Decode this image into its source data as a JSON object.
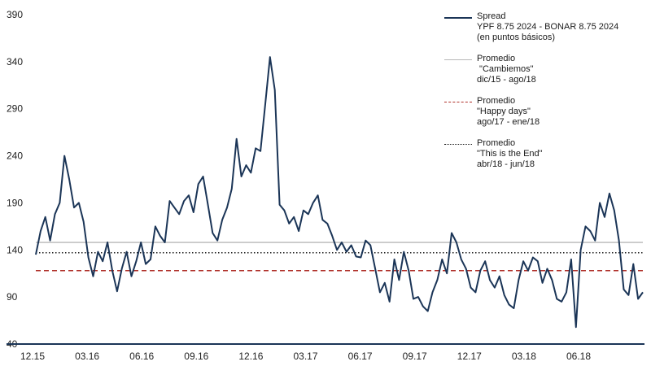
{
  "chart_data": {
    "type": "line",
    "x_ticks": [
      "12.15",
      "03.16",
      "06.16",
      "09.16",
      "12.16",
      "03.17",
      "06.17",
      "09.17",
      "12.17",
      "03.18",
      "06.18"
    ],
    "y_ticks": [
      40,
      90,
      140,
      190,
      240,
      290,
      340,
      390
    ],
    "ylim": [
      40,
      390
    ],
    "grid": false,
    "legend_position": "top-right",
    "colors": {
      "series": "#1b3557",
      "cambiemos": "#b7b7b7",
      "happy": "#b0302a",
      "end": "#1a1a1a"
    },
    "series": [
      {
        "name": "Spread",
        "x_start": "12.15",
        "values": [
          135,
          160,
          175,
          150,
          178,
          190,
          240,
          215,
          185,
          190,
          170,
          132,
          112,
          138,
          128,
          148,
          118,
          96,
          120,
          138,
          112,
          128,
          148,
          125,
          130,
          165,
          155,
          148,
          192,
          185,
          178,
          192,
          198,
          180,
          210,
          218,
          188,
          158,
          150,
          172,
          185,
          205,
          258,
          218,
          230,
          222,
          248,
          245,
          295,
          345,
          310,
          188,
          182,
          168,
          175,
          160,
          182,
          178,
          190,
          198,
          172,
          168,
          155,
          140,
          148,
          138,
          145,
          133,
          132,
          150,
          145,
          120,
          95,
          105,
          85,
          130,
          108,
          138,
          118,
          88,
          90,
          80,
          75,
          95,
          108,
          130,
          115,
          158,
          148,
          130,
          120,
          100,
          95,
          118,
          128,
          108,
          100,
          112,
          92,
          82,
          78,
          108,
          128,
          118,
          132,
          128,
          105,
          120,
          108,
          88,
          85,
          95,
          130,
          58,
          140,
          165,
          160,
          150,
          190,
          175,
          200,
          182,
          150,
          98,
          92,
          125,
          88,
          95
        ]
      },
      {
        "name": "Promedio \"Cambiemos\" dic/15 - ago/18",
        "value": 148
      },
      {
        "name": "Promedio \"Happy days\" ago/17 - ene/18",
        "value": 118
      },
      {
        "name": "Promedio \"This is the End\" abr/18 - jun/18",
        "value": 137
      }
    ]
  },
  "legend": {
    "spread": [
      "Spread",
      "YPF 8.75 2024 - BONAR 8.75 2024",
      "(en puntos básicos)"
    ],
    "cambiemos": [
      "Promedio",
      " \"Cambiemos\"",
      "dic/15 - ago/18"
    ],
    "happy": [
      "Promedio",
      "\"Happy days\"",
      "ago/17 - ene/18"
    ],
    "end": [
      "Promedio",
      "\"This is the End\"",
      "abr/18 - jun/18"
    ]
  }
}
